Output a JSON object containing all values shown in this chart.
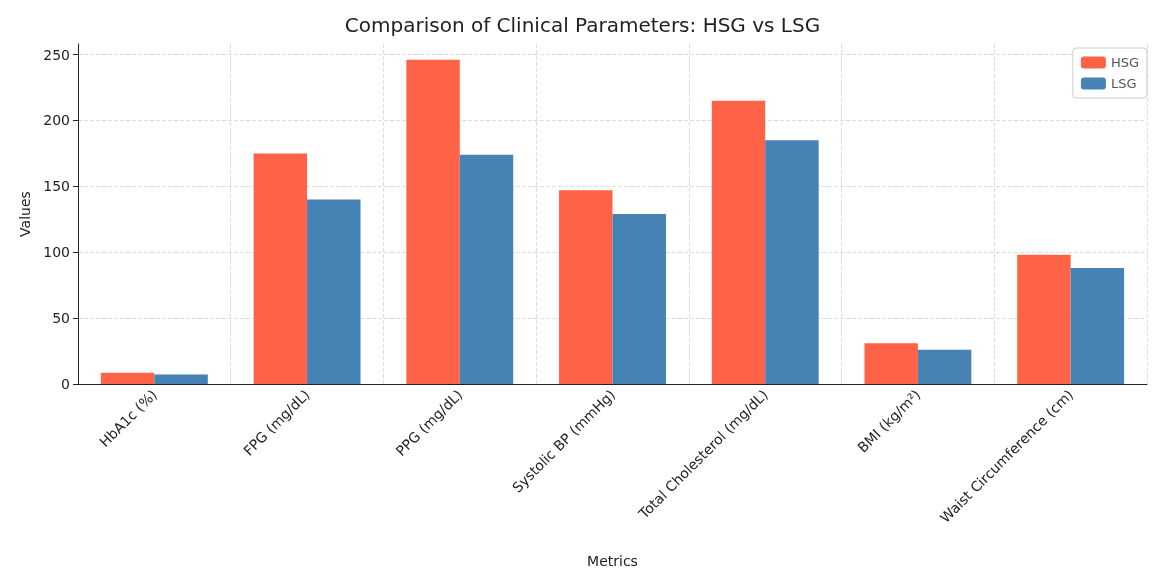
{
  "chart_data": {
    "type": "bar",
    "title": "Comparison of Clinical Parameters: HSG vs LSG",
    "xlabel": "Metrics",
    "ylabel": "Values",
    "categories": [
      "HbA1c (%)",
      "FPG (mg/dL)",
      "PPG (mg/dL)",
      "Systolic BP (mmHg)",
      "Total Cholesterol (mg/dL)",
      "BMI (kg/m²)",
      "Waist Circumference (cm)"
    ],
    "series": [
      {
        "name": "HSG",
        "color": "#ff6347",
        "values": [
          8.5,
          175,
          246,
          147,
          215,
          31,
          98
        ]
      },
      {
        "name": "LSG",
        "color": "#4682b4",
        "values": [
          7.2,
          140,
          174,
          129,
          185,
          26,
          88
        ]
      }
    ],
    "ylim": [
      0,
      258
    ],
    "yticks": [
      0,
      50,
      100,
      150,
      200,
      250
    ],
    "grid": true,
    "legend": "top right"
  }
}
